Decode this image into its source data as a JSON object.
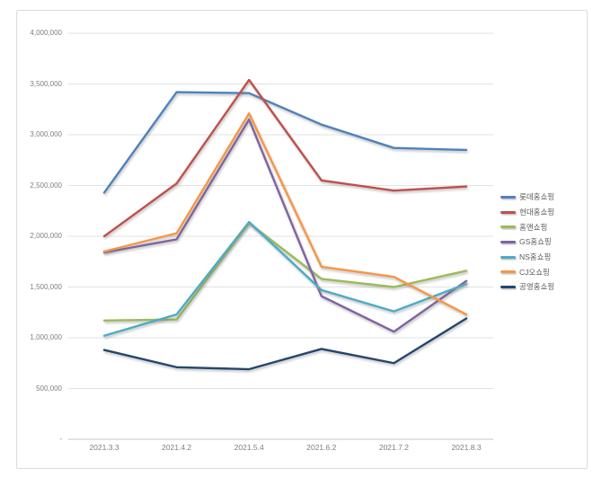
{
  "window": {
    "background": "#ffffff",
    "frame_border": "#dcdcdc"
  },
  "axis_style": {
    "grid_color": "#e2e2e2",
    "axis_line_color": "#c6c6c6",
    "tick_label_color": "#7f7f7f"
  },
  "legend": {
    "position": "right",
    "text_color": "#595959"
  },
  "chart_data": {
    "type": "line",
    "categories": [
      "2021.3.3",
      "2021.4.2",
      "2021.5.4",
      "2021.6.2",
      "2021.7.2",
      "2021.8.3"
    ],
    "ylim": [
      0,
      4000000
    ],
    "ytick_step": 500000,
    "ytick_labels_top_to_bottom": [
      "4,000,000",
      "3,500,000",
      "3,000,000",
      "2,500,000",
      "2,000,000",
      "1,500,000",
      "1,000,000",
      "500,000",
      "-"
    ],
    "grid": true,
    "legend_position": "right",
    "series": [
      {
        "name": "롯데홈쇼핑",
        "color": "#4F81BD",
        "values": [
          2430000,
          3420000,
          3410000,
          3100000,
          2870000,
          2850000
        ]
      },
      {
        "name": "현대홈쇼핑",
        "color": "#C0504D",
        "values": [
          2000000,
          2520000,
          3540000,
          2550000,
          2450000,
          2490000
        ]
      },
      {
        "name": "홈앤쇼핑",
        "color": "#9BBB59",
        "values": [
          1170000,
          1180000,
          2130000,
          1580000,
          1500000,
          1660000
        ]
      },
      {
        "name": "GS홈쇼핑",
        "color": "#8064A2",
        "values": [
          1840000,
          1970000,
          3150000,
          1410000,
          1060000,
          1560000
        ]
      },
      {
        "name": "NS홈쇼핑",
        "color": "#4BACC6",
        "values": [
          1020000,
          1230000,
          2140000,
          1470000,
          1260000,
          1530000
        ]
      },
      {
        "name": "CJ오쇼핑",
        "color": "#F79646",
        "values": [
          1850000,
          2030000,
          3210000,
          1700000,
          1600000,
          1230000
        ]
      },
      {
        "name": "공영홈쇼핑",
        "color": "#24466E",
        "values": [
          880000,
          710000,
          690000,
          890000,
          750000,
          1190000
        ]
      }
    ]
  }
}
